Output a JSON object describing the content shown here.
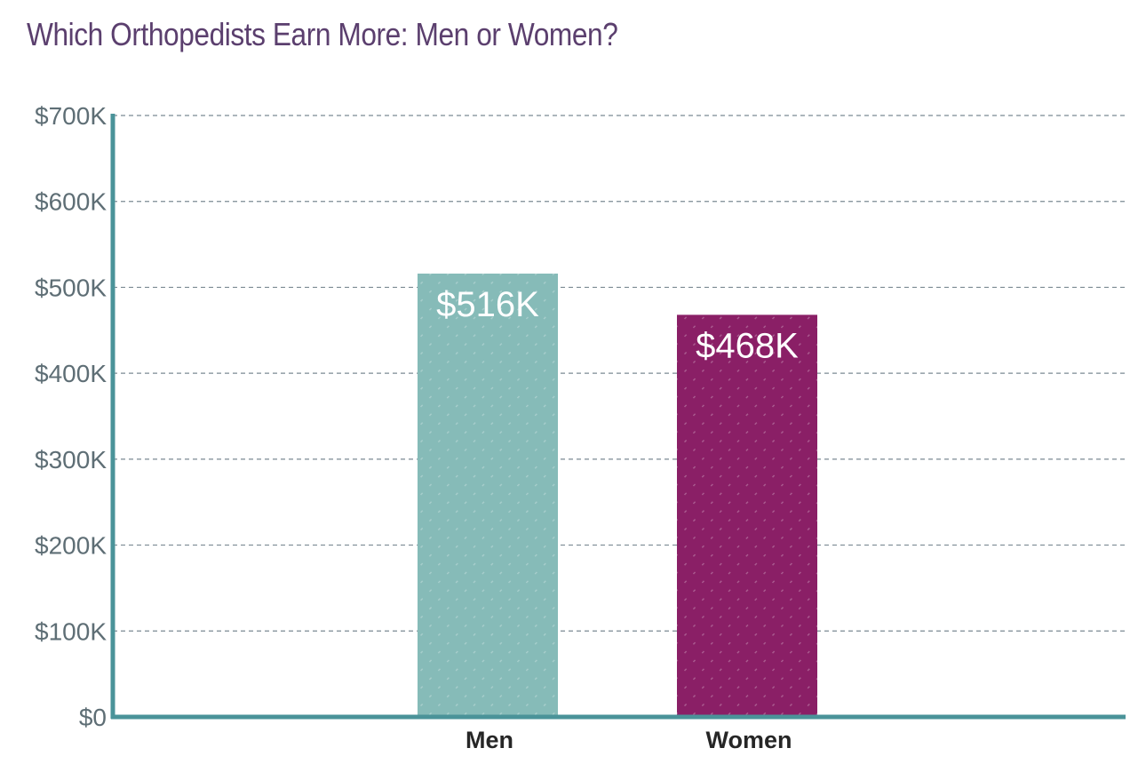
{
  "chart_data": {
    "type": "bar",
    "title": "Which Orthopedists Earn More: Men or Women?",
    "xlabel": "",
    "ylabel": "",
    "categories": [
      "Men",
      "Women"
    ],
    "values": [
      516,
      468
    ],
    "value_labels": [
      "$516K",
      "$468K"
    ],
    "ylim": [
      0,
      700
    ],
    "yticks": [
      0,
      100,
      200,
      300,
      400,
      500,
      600,
      700
    ],
    "ytick_labels": [
      "$0",
      "$100K",
      "$200K",
      "$300K",
      "$400K",
      "$500K",
      "$600K",
      "$700K"
    ],
    "grid": true,
    "colors": [
      "#86bbb8",
      "#8a1f66"
    ],
    "title_color": "#5b3f6e",
    "axis_color": "#4a9399"
  }
}
